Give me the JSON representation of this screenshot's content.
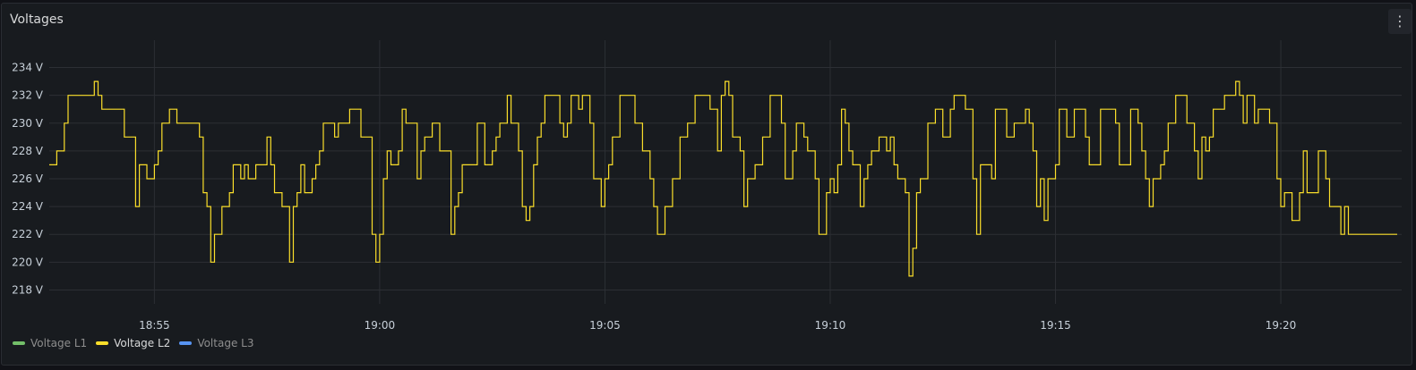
{
  "panel": {
    "title": "Voltages",
    "menu_icon": "kebab-menu-icon",
    "menu_glyph": "⋮"
  },
  "chart_data": {
    "type": "line",
    "title": "Voltages",
    "ylim": [
      217,
      235
    ],
    "y_ticks": [
      {
        "value": 234,
        "label": "234 V"
      },
      {
        "value": 232,
        "label": "232 V"
      },
      {
        "value": 230,
        "label": "230 V"
      },
      {
        "value": 228,
        "label": "228 V"
      },
      {
        "value": 226,
        "label": "226 V"
      },
      {
        "value": 224,
        "label": "224 V"
      },
      {
        "value": 222,
        "label": "222 V"
      },
      {
        "value": 220,
        "label": "220 V"
      },
      {
        "value": 218,
        "label": "218 V"
      }
    ],
    "xlim": [
      "18:52:40",
      "19:22:35"
    ],
    "x_ticks": [
      {
        "value": "18:55",
        "label": "18:55"
      },
      {
        "value": "19:00",
        "label": "19:00"
      },
      {
        "value": "19:05",
        "label": "19:05"
      },
      {
        "value": "19:10",
        "label": "19:10"
      },
      {
        "value": "19:15",
        "label": "19:15"
      },
      {
        "value": "19:20",
        "label": "19:20"
      }
    ],
    "grid": true,
    "step": true,
    "legend_position": "bottom-left",
    "series": [
      {
        "name": "Voltage L1",
        "color": "#73bf69",
        "data": []
      },
      {
        "name": "Voltage L2",
        "color": "#fade2a",
        "data": [
          [
            "18:52:40",
            227
          ],
          [
            "18:52:50",
            228
          ],
          [
            "18:53:00",
            230
          ],
          [
            "18:53:05",
            232
          ],
          [
            "18:53:40",
            233
          ],
          [
            "18:53:45",
            232
          ],
          [
            "18:53:50",
            231
          ],
          [
            "18:54:20",
            229
          ],
          [
            "18:54:35",
            224
          ],
          [
            "18:54:40",
            227
          ],
          [
            "18:54:50",
            226
          ],
          [
            "18:55:00",
            227
          ],
          [
            "18:55:05",
            228
          ],
          [
            "18:55:10",
            230
          ],
          [
            "18:55:20",
            231
          ],
          [
            "18:55:30",
            230
          ],
          [
            "18:56:00",
            229
          ],
          [
            "18:56:05",
            225
          ],
          [
            "18:56:10",
            224
          ],
          [
            "18:56:15",
            220
          ],
          [
            "18:56:20",
            222
          ],
          [
            "18:56:30",
            224
          ],
          [
            "18:56:40",
            225
          ],
          [
            "18:56:45",
            227
          ],
          [
            "18:56:55",
            226
          ],
          [
            "18:57:00",
            227
          ],
          [
            "18:57:05",
            226
          ],
          [
            "18:57:15",
            227
          ],
          [
            "18:57:30",
            229
          ],
          [
            "18:57:35",
            227
          ],
          [
            "18:57:40",
            225
          ],
          [
            "18:57:50",
            224
          ],
          [
            "18:58:00",
            220
          ],
          [
            "18:58:05",
            224
          ],
          [
            "18:58:10",
            225
          ],
          [
            "18:58:15",
            227
          ],
          [
            "18:58:20",
            225
          ],
          [
            "18:58:30",
            226
          ],
          [
            "18:58:35",
            227
          ],
          [
            "18:58:40",
            228
          ],
          [
            "18:58:45",
            230
          ],
          [
            "18:59:00",
            229
          ],
          [
            "18:59:05",
            230
          ],
          [
            "18:59:20",
            231
          ],
          [
            "18:59:35",
            229
          ],
          [
            "18:59:50",
            222
          ],
          [
            "18:59:55",
            220
          ],
          [
            "19:00:00",
            222
          ],
          [
            "19:00:05",
            226
          ],
          [
            "19:00:10",
            228
          ],
          [
            "19:00:15",
            227
          ],
          [
            "19:00:25",
            228
          ],
          [
            "19:00:30",
            231
          ],
          [
            "19:00:35",
            230
          ],
          [
            "19:00:50",
            226
          ],
          [
            "19:00:55",
            228
          ],
          [
            "19:01:00",
            229
          ],
          [
            "19:01:10",
            230
          ],
          [
            "19:01:20",
            228
          ],
          [
            "19:01:35",
            222
          ],
          [
            "19:01:40",
            224
          ],
          [
            "19:01:45",
            225
          ],
          [
            "19:01:50",
            227
          ],
          [
            "19:02:10",
            230
          ],
          [
            "19:02:20",
            227
          ],
          [
            "19:02:30",
            228
          ],
          [
            "19:02:35",
            229
          ],
          [
            "19:02:40",
            230
          ],
          [
            "19:02:50",
            232
          ],
          [
            "19:02:55",
            230
          ],
          [
            "19:03:05",
            228
          ],
          [
            "19:03:10",
            224
          ],
          [
            "19:03:15",
            223
          ],
          [
            "19:03:20",
            224
          ],
          [
            "19:03:25",
            227
          ],
          [
            "19:03:30",
            229
          ],
          [
            "19:03:35",
            230
          ],
          [
            "19:03:40",
            232
          ],
          [
            "19:04:00",
            230
          ],
          [
            "19:04:05",
            229
          ],
          [
            "19:04:10",
            230
          ],
          [
            "19:04:15",
            232
          ],
          [
            "19:04:25",
            231
          ],
          [
            "19:04:30",
            232
          ],
          [
            "19:04:40",
            230
          ],
          [
            "19:04:45",
            226
          ],
          [
            "19:04:55",
            224
          ],
          [
            "19:05:00",
            226
          ],
          [
            "19:05:05",
            227
          ],
          [
            "19:05:10",
            229
          ],
          [
            "19:05:20",
            232
          ],
          [
            "19:05:40",
            230
          ],
          [
            "19:05:50",
            228
          ],
          [
            "19:06:00",
            226
          ],
          [
            "19:06:05",
            224
          ],
          [
            "19:06:10",
            222
          ],
          [
            "19:06:20",
            224
          ],
          [
            "19:06:30",
            226
          ],
          [
            "19:06:40",
            229
          ],
          [
            "19:06:50",
            230
          ],
          [
            "19:07:00",
            232
          ],
          [
            "19:07:20",
            231
          ],
          [
            "19:07:30",
            228
          ],
          [
            "19:07:35",
            232
          ],
          [
            "19:07:40",
            233
          ],
          [
            "19:07:45",
            232
          ],
          [
            "19:07:50",
            229
          ],
          [
            "19:08:00",
            228
          ],
          [
            "19:08:05",
            224
          ],
          [
            "19:08:10",
            226
          ],
          [
            "19:08:20",
            227
          ],
          [
            "19:08:30",
            229
          ],
          [
            "19:08:40",
            232
          ],
          [
            "19:08:55",
            230
          ],
          [
            "19:09:00",
            226
          ],
          [
            "19:09:10",
            228
          ],
          [
            "19:09:15",
            230
          ],
          [
            "19:09:25",
            229
          ],
          [
            "19:09:30",
            228
          ],
          [
            "19:09:40",
            226
          ],
          [
            "19:09:45",
            222
          ],
          [
            "19:09:55",
            225
          ],
          [
            "19:10:00",
            226
          ],
          [
            "19:10:05",
            225
          ],
          [
            "19:10:10",
            227
          ],
          [
            "19:10:15",
            231
          ],
          [
            "19:10:20",
            230
          ],
          [
            "19:10:25",
            228
          ],
          [
            "19:10:30",
            227
          ],
          [
            "19:10:40",
            224
          ],
          [
            "19:10:45",
            226
          ],
          [
            "19:10:50",
            227
          ],
          [
            "19:10:55",
            228
          ],
          [
            "19:11:05",
            229
          ],
          [
            "19:11:15",
            228
          ],
          [
            "19:11:20",
            229
          ],
          [
            "19:11:25",
            227
          ],
          [
            "19:11:30",
            226
          ],
          [
            "19:11:40",
            225
          ],
          [
            "19:11:45",
            219
          ],
          [
            "19:11:50",
            221
          ],
          [
            "19:11:55",
            225
          ],
          [
            "19:12:00",
            226
          ],
          [
            "19:12:10",
            230
          ],
          [
            "19:12:20",
            231
          ],
          [
            "19:12:30",
            229
          ],
          [
            "19:12:40",
            231
          ],
          [
            "19:12:45",
            232
          ],
          [
            "19:13:00",
            231
          ],
          [
            "19:13:10",
            226
          ],
          [
            "19:13:15",
            222
          ],
          [
            "19:13:20",
            227
          ],
          [
            "19:13:35",
            226
          ],
          [
            "19:13:40",
            231
          ],
          [
            "19:13:55",
            229
          ],
          [
            "19:14:05",
            230
          ],
          [
            "19:14:20",
            231
          ],
          [
            "19:14:25",
            230
          ],
          [
            "19:14:30",
            228
          ],
          [
            "19:14:35",
            224
          ],
          [
            "19:14:40",
            226
          ],
          [
            "19:14:45",
            223
          ],
          [
            "19:14:50",
            226
          ],
          [
            "19:15:00",
            227
          ],
          [
            "19:15:05",
            231
          ],
          [
            "19:15:15",
            229
          ],
          [
            "19:15:25",
            231
          ],
          [
            "19:15:40",
            229
          ],
          [
            "19:15:45",
            227
          ],
          [
            "19:16:00",
            231
          ],
          [
            "19:16:20",
            230
          ],
          [
            "19:16:25",
            227
          ],
          [
            "19:16:40",
            231
          ],
          [
            "19:16:50",
            230
          ],
          [
            "19:16:55",
            228
          ],
          [
            "19:17:00",
            226
          ],
          [
            "19:17:05",
            224
          ],
          [
            "19:17:10",
            226
          ],
          [
            "19:17:20",
            227
          ],
          [
            "19:17:25",
            228
          ],
          [
            "19:17:30",
            230
          ],
          [
            "19:17:40",
            232
          ],
          [
            "19:17:55",
            230
          ],
          [
            "19:18:05",
            228
          ],
          [
            "19:18:10",
            226
          ],
          [
            "19:18:15",
            229
          ],
          [
            "19:18:20",
            228
          ],
          [
            "19:18:25",
            229
          ],
          [
            "19:18:30",
            231
          ],
          [
            "19:18:45",
            232
          ],
          [
            "19:19:00",
            233
          ],
          [
            "19:19:05",
            232
          ],
          [
            "19:19:10",
            230
          ],
          [
            "19:19:15",
            232
          ],
          [
            "19:19:25",
            230
          ],
          [
            "19:19:30",
            231
          ],
          [
            "19:19:45",
            230
          ],
          [
            "19:19:55",
            226
          ],
          [
            "19:20:00",
            224
          ],
          [
            "19:20:05",
            225
          ],
          [
            "19:20:15",
            223
          ],
          [
            "19:20:25",
            225
          ],
          [
            "19:20:30",
            228
          ],
          [
            "19:20:35",
            225
          ],
          [
            "19:20:50",
            228
          ],
          [
            "19:21:00",
            226
          ],
          [
            "19:21:05",
            224
          ],
          [
            "19:21:20",
            222
          ],
          [
            "19:21:25",
            224
          ],
          [
            "19:21:30",
            222
          ]
        ]
      },
      {
        "name": "Voltage L3",
        "color": "#5794f2",
        "data": []
      }
    ]
  }
}
